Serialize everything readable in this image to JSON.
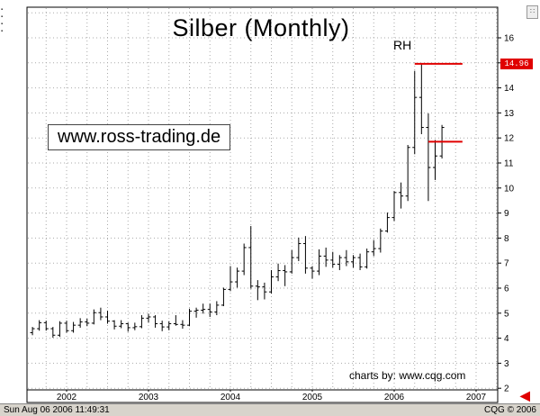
{
  "window": {
    "status_left": "Sun Aug 06 2006 11:49:31",
    "status_right": "CQG © 2006"
  },
  "chart": {
    "title": "Silber (Monthly)",
    "watermark": "www.ross-trading.de",
    "credit": "charts by: www.cqg.com",
    "rh_label": "RH",
    "price_tag": "14.96",
    "colors": {
      "annotation_red": "#e00000",
      "bar_black": "#000000",
      "grid_gray": "#aaaaaa"
    }
  },
  "chart_data": {
    "type": "bar",
    "subtype": "ohlc-monthly-bars",
    "title": "Silber (Monthly)",
    "xlabel": "",
    "ylabel": "",
    "ylim": [
      1.8,
      17.2
    ],
    "grid": "dotted",
    "legend": "none",
    "x_tick_labels": [
      "2002",
      "2003",
      "2004",
      "2005",
      "2006",
      "2007"
    ],
    "y_ticks": [
      2,
      3,
      4,
      5,
      6,
      7,
      8,
      9,
      10,
      11,
      12,
      13,
      14,
      15,
      16
    ],
    "bars_format": [
      "month",
      "open",
      "high",
      "low",
      "close"
    ],
    "bars": [
      [
        "2001-08",
        4.22,
        4.45,
        4.12,
        4.38
      ],
      [
        "2001-09",
        4.38,
        4.72,
        4.3,
        4.62
      ],
      [
        "2001-10",
        4.62,
        4.7,
        4.3,
        4.38
      ],
      [
        "2001-11",
        4.38,
        4.45,
        4.02,
        4.12
      ],
      [
        "2001-12",
        4.12,
        4.68,
        4.05,
        4.6
      ],
      [
        "2002-01",
        4.6,
        4.7,
        4.22,
        4.3
      ],
      [
        "2002-02",
        4.3,
        4.65,
        4.22,
        4.52
      ],
      [
        "2002-03",
        4.52,
        4.8,
        4.42,
        4.65
      ],
      [
        "2002-04",
        4.65,
        4.78,
        4.48,
        4.6
      ],
      [
        "2002-05",
        4.6,
        5.15,
        4.55,
        5.02
      ],
      [
        "2002-06",
        5.02,
        5.22,
        4.72,
        4.85
      ],
      [
        "2002-07",
        4.85,
        5.1,
        4.58,
        4.68
      ],
      [
        "2002-08",
        4.68,
        4.72,
        4.35,
        4.48
      ],
      [
        "2002-09",
        4.48,
        4.72,
        4.4,
        4.58
      ],
      [
        "2002-10",
        4.58,
        4.62,
        4.26,
        4.42
      ],
      [
        "2002-11",
        4.42,
        4.62,
        4.32,
        4.46
      ],
      [
        "2002-12",
        4.46,
        4.92,
        4.4,
        4.8
      ],
      [
        "2003-01",
        4.8,
        4.98,
        4.62,
        4.85
      ],
      [
        "2003-02",
        4.85,
        4.92,
        4.42,
        4.58
      ],
      [
        "2003-03",
        4.58,
        4.7,
        4.28,
        4.45
      ],
      [
        "2003-04",
        4.45,
        4.68,
        4.32,
        4.58
      ],
      [
        "2003-05",
        4.58,
        4.92,
        4.5,
        4.55
      ],
      [
        "2003-06",
        4.55,
        4.72,
        4.38,
        4.52
      ],
      [
        "2003-07",
        4.52,
        5.18,
        4.48,
        5.08
      ],
      [
        "2003-08",
        5.08,
        5.22,
        4.82,
        5.12
      ],
      [
        "2003-09",
        5.12,
        5.38,
        4.98,
        5.15
      ],
      [
        "2003-10",
        5.15,
        5.38,
        4.85,
        5.05
      ],
      [
        "2003-11",
        5.05,
        5.48,
        4.92,
        5.32
      ],
      [
        "2003-12",
        5.32,
        6.02,
        5.28,
        5.95
      ],
      [
        "2004-01",
        5.95,
        6.88,
        5.88,
        6.25
      ],
      [
        "2004-02",
        6.25,
        6.82,
        6.02,
        6.68
      ],
      [
        "2004-03",
        6.68,
        7.78,
        6.52,
        7.62
      ],
      [
        "2004-04",
        7.62,
        8.48,
        5.98,
        6.08
      ],
      [
        "2004-05",
        6.08,
        6.32,
        5.52,
        6.05
      ],
      [
        "2004-06",
        6.05,
        6.22,
        5.55,
        5.85
      ],
      [
        "2004-07",
        5.85,
        6.72,
        5.78,
        6.45
      ],
      [
        "2004-08",
        6.45,
        6.98,
        6.28,
        6.7
      ],
      [
        "2004-09",
        6.7,
        6.92,
        6.08,
        6.65
      ],
      [
        "2004-10",
        6.65,
        7.52,
        6.58,
        7.22
      ],
      [
        "2004-11",
        7.22,
        8.02,
        7.08,
        7.78
      ],
      [
        "2004-12",
        7.78,
        8.08,
        6.58,
        6.8
      ],
      [
        "2005-01",
        6.8,
        6.88,
        6.38,
        6.68
      ],
      [
        "2005-02",
        6.68,
        7.55,
        6.52,
        7.28
      ],
      [
        "2005-03",
        7.28,
        7.62,
        6.85,
        7.12
      ],
      [
        "2005-04",
        7.12,
        7.45,
        6.82,
        6.95
      ],
      [
        "2005-05",
        6.95,
        7.32,
        6.72,
        7.22
      ],
      [
        "2005-06",
        7.22,
        7.52,
        6.88,
        7.05
      ],
      [
        "2005-07",
        7.05,
        7.32,
        6.82,
        7.22
      ],
      [
        "2005-08",
        7.22,
        7.38,
        6.72,
        6.85
      ],
      [
        "2005-09",
        6.85,
        7.58,
        6.78,
        7.45
      ],
      [
        "2005-10",
        7.45,
        7.92,
        7.28,
        7.58
      ],
      [
        "2005-11",
        7.58,
        8.38,
        7.42,
        8.28
      ],
      [
        "2005-12",
        8.28,
        9.02,
        8.22,
        8.82
      ],
      [
        "2006-01",
        8.82,
        9.88,
        8.68,
        9.82
      ],
      [
        "2006-02",
        9.82,
        10.22,
        9.18,
        9.68
      ],
      [
        "2006-03",
        9.68,
        11.72,
        9.48,
        11.62
      ],
      [
        "2006-04",
        11.62,
        14.68,
        11.35,
        13.62
      ],
      [
        "2006-05",
        13.62,
        14.96,
        12.15,
        12.42
      ],
      [
        "2006-06",
        12.42,
        12.98,
        9.48,
        10.82
      ],
      [
        "2006-07",
        10.82,
        11.92,
        10.32,
        11.28
      ],
      [
        "2006-08",
        11.28,
        12.52,
        11.18,
        12.42
      ]
    ],
    "annotations": [
      {
        "type": "hline",
        "label": "RH",
        "price": 14.96,
        "from": "2006-04",
        "to": "2006-11",
        "color": "#e00000",
        "axis_tag": "14.96"
      },
      {
        "type": "hline",
        "label": "",
        "price": 11.85,
        "from": "2006-06",
        "to": "2006-11",
        "color": "#e00000",
        "axis_tag": ""
      }
    ]
  }
}
